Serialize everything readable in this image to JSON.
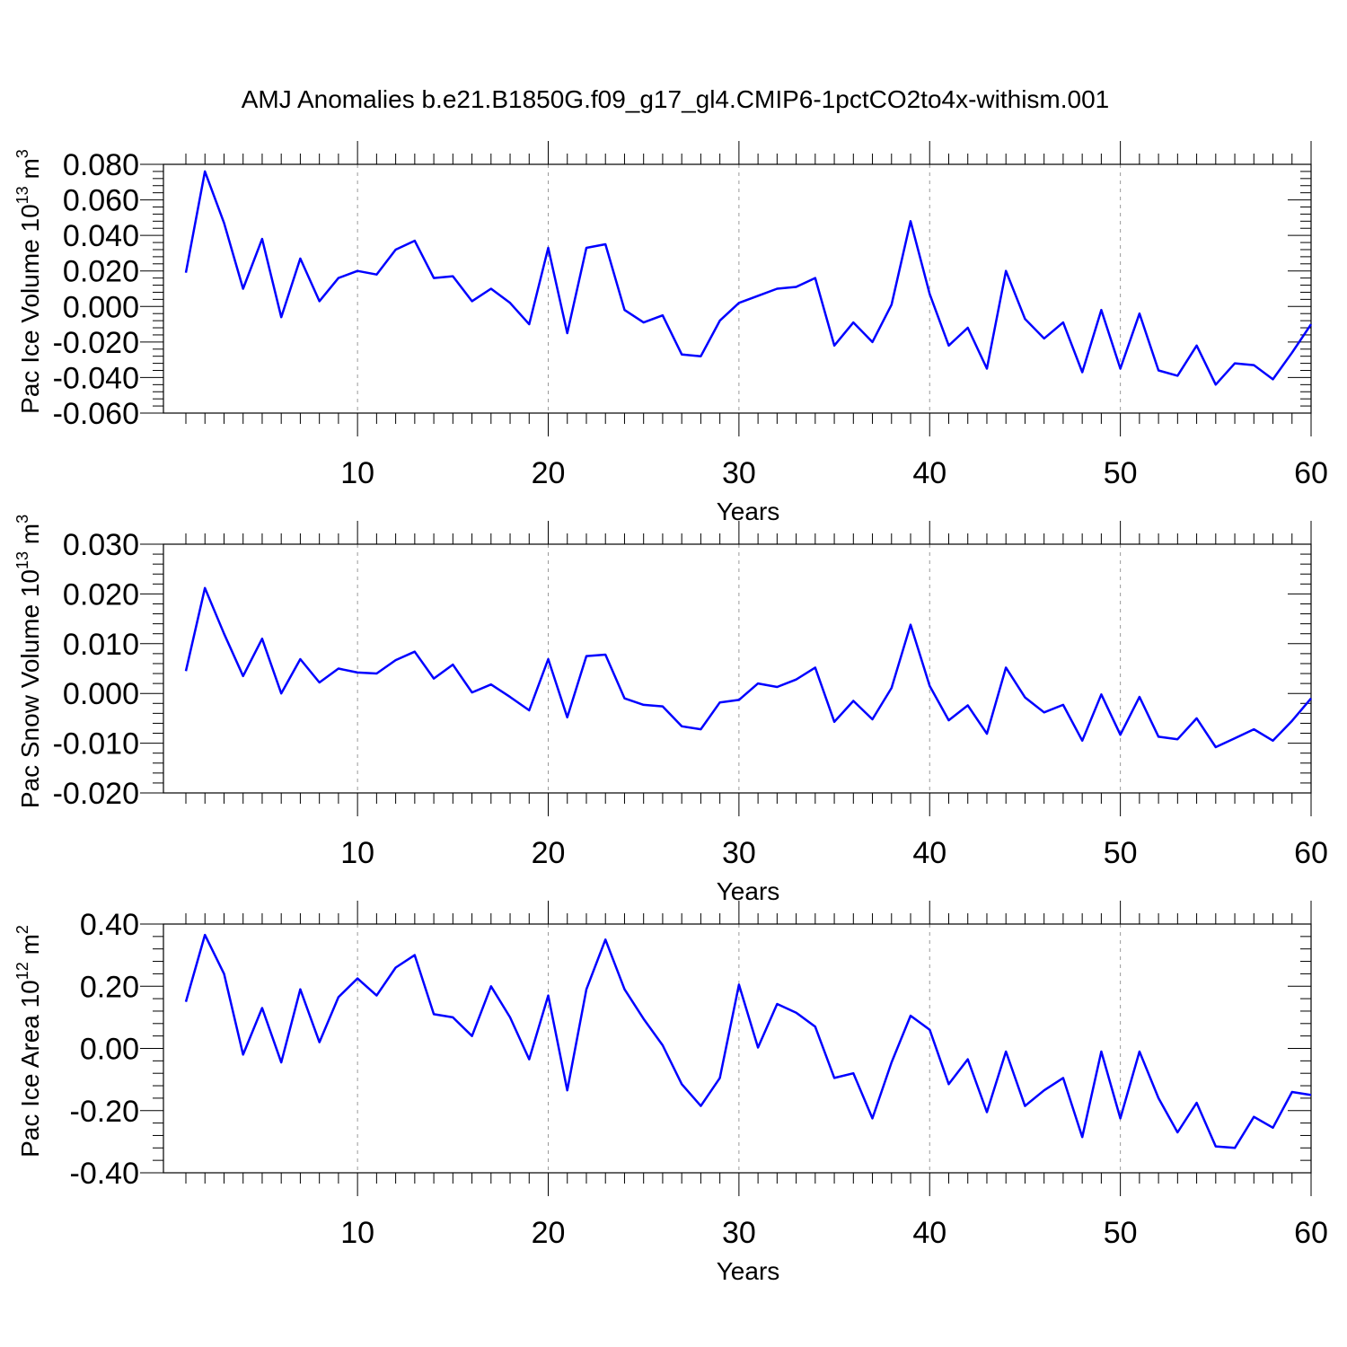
{
  "figure": {
    "title": "AMJ Anomalies b.e21.B1850G.f09_g17_gl4.CMIP6-1pctCO2to4x-withism.001"
  },
  "chart_data": [
    {
      "type": "line",
      "ylabel": "Pac Ice Volume 10",
      "ylabel_sup": "13",
      "ylabel_unit": " m",
      "ylabel_unit_sup": "3",
      "xlabel": "Years",
      "xlim": [
        1,
        60
      ],
      "ylim": [
        -0.06,
        0.08
      ],
      "yticks": [
        "0.080",
        "0.060",
        "0.040",
        "0.020",
        "0.000",
        "-0.020",
        "-0.040",
        "-0.060"
      ],
      "ytick_values": [
        0.08,
        0.06,
        0.04,
        0.02,
        0.0,
        -0.02,
        -0.04,
        -0.06
      ],
      "xticks": [
        "10",
        "20",
        "30",
        "40",
        "50",
        "60"
      ],
      "xtick_values": [
        10,
        20,
        30,
        40,
        50,
        60
      ],
      "grid": "vertical dashed at major x ticks",
      "line_color": "#0000ff",
      "x": [
        1,
        2,
        3,
        4,
        5,
        6,
        7,
        8,
        9,
        10,
        11,
        12,
        13,
        14,
        15,
        16,
        17,
        18,
        19,
        20,
        21,
        22,
        23,
        24,
        25,
        26,
        27,
        28,
        29,
        30,
        31,
        32,
        33,
        34,
        35,
        36,
        37,
        38,
        39,
        40,
        41,
        42,
        43,
        44,
        45,
        46,
        47,
        48,
        49,
        50,
        51,
        52,
        53,
        54,
        55,
        56,
        57,
        58,
        59,
        60
      ],
      "y": [
        0.019,
        0.076,
        0.047,
        0.01,
        0.038,
        -0.006,
        0.027,
        0.003,
        0.016,
        0.02,
        0.018,
        0.032,
        0.037,
        0.016,
        0.017,
        0.003,
        0.01,
        0.002,
        -0.01,
        0.033,
        -0.015,
        0.033,
        0.035,
        -0.002,
        -0.009,
        -0.005,
        -0.027,
        -0.028,
        -0.008,
        0.002,
        0.006,
        0.01,
        0.011,
        0.016,
        -0.022,
        -0.009,
        -0.02,
        0.001,
        0.048,
        0.007,
        -0.022,
        -0.012,
        -0.035,
        0.02,
        -0.007,
        -0.018,
        -0.009,
        -0.037,
        -0.002,
        -0.035,
        -0.004,
        -0.036,
        -0.039,
        -0.022,
        -0.044,
        -0.032,
        -0.033,
        -0.041,
        -0.026,
        -0.01
      ]
    },
    {
      "type": "line",
      "ylabel": "Pac Snow Volume 10",
      "ylabel_sup": "13",
      "ylabel_unit": " m",
      "ylabel_unit_sup": "3",
      "xlabel": "Years",
      "xlim": [
        1,
        60
      ],
      "ylim": [
        -0.02,
        0.03
      ],
      "yticks": [
        "0.030",
        "0.020",
        "0.010",
        "0.000",
        "-0.010",
        "-0.020"
      ],
      "ytick_values": [
        0.03,
        0.02,
        0.01,
        0.0,
        -0.01,
        -0.02
      ],
      "xticks": [
        "10",
        "20",
        "30",
        "40",
        "50",
        "60"
      ],
      "xtick_values": [
        10,
        20,
        30,
        40,
        50,
        60
      ],
      "grid": "vertical dashed at major x ticks",
      "line_color": "#0000ff",
      "x": [
        1,
        2,
        3,
        4,
        5,
        6,
        7,
        8,
        9,
        10,
        11,
        12,
        13,
        14,
        15,
        16,
        17,
        18,
        19,
        20,
        21,
        22,
        23,
        24,
        25,
        26,
        27,
        28,
        29,
        30,
        31,
        32,
        33,
        34,
        35,
        36,
        37,
        38,
        39,
        40,
        41,
        42,
        43,
        44,
        45,
        46,
        47,
        48,
        49,
        50,
        51,
        52,
        53,
        54,
        55,
        56,
        57,
        58,
        59,
        60
      ],
      "y": [
        0.0045,
        0.0212,
        0.012,
        0.0035,
        0.011,
        0.0,
        0.0069,
        0.0022,
        0.005,
        0.0042,
        0.004,
        0.0067,
        0.0084,
        0.003,
        0.0058,
        0.0002,
        0.0018,
        -0.0007,
        -0.0034,
        0.0069,
        -0.0048,
        0.0075,
        0.0078,
        -0.001,
        -0.0023,
        -0.0026,
        -0.0066,
        -0.0072,
        -0.0018,
        -0.0013,
        0.002,
        0.0013,
        0.0028,
        0.0052,
        -0.0057,
        -0.0015,
        -0.0052,
        0.0011,
        0.0138,
        0.0015,
        -0.0054,
        -0.0024,
        -0.0081,
        0.0052,
        -0.0008,
        -0.0038,
        -0.0023,
        -0.0095,
        -0.0002,
        -0.0083,
        -0.0007,
        -0.0087,
        -0.0092,
        -0.005,
        -0.0108,
        -0.009,
        -0.0072,
        -0.0095,
        -0.0055,
        -0.001
      ]
    },
    {
      "type": "line",
      "ylabel": "Pac Ice Area 10",
      "ylabel_sup": "12",
      "ylabel_unit": " m",
      "ylabel_unit_sup": "2",
      "xlabel": "Years",
      "xlim": [
        1,
        60
      ],
      "ylim": [
        -0.4,
        0.4
      ],
      "yticks": [
        "0.40",
        "0.20",
        "0.00",
        "-0.20",
        "-0.40"
      ],
      "ytick_values": [
        0.4,
        0.2,
        0.0,
        -0.2,
        -0.4
      ],
      "xticks": [
        "10",
        "20",
        "30",
        "40",
        "50",
        "60"
      ],
      "xtick_values": [
        10,
        20,
        30,
        40,
        50,
        60
      ],
      "grid": "vertical dashed at major x ticks",
      "line_color": "#0000ff",
      "x": [
        1,
        2,
        3,
        4,
        5,
        6,
        7,
        8,
        9,
        10,
        11,
        12,
        13,
        14,
        15,
        16,
        17,
        18,
        19,
        20,
        21,
        22,
        23,
        24,
        25,
        26,
        27,
        28,
        29,
        30,
        31,
        32,
        33,
        34,
        35,
        36,
        37,
        38,
        39,
        40,
        41,
        42,
        43,
        44,
        45,
        46,
        47,
        48,
        49,
        50,
        51,
        52,
        53,
        54,
        55,
        56,
        57,
        58,
        59,
        60
      ],
      "y": [
        0.15,
        0.365,
        0.24,
        -0.02,
        0.13,
        -0.045,
        0.19,
        0.02,
        0.165,
        0.225,
        0.17,
        0.26,
        0.3,
        0.11,
        0.1,
        0.04,
        0.2,
        0.1,
        -0.035,
        0.17,
        -0.135,
        0.19,
        0.35,
        0.19,
        0.095,
        0.01,
        -0.115,
        -0.185,
        -0.095,
        0.205,
        0.003,
        0.143,
        0.115,
        0.07,
        -0.095,
        -0.08,
        -0.225,
        -0.045,
        0.105,
        0.06,
        -0.115,
        -0.035,
        -0.205,
        -0.01,
        -0.185,
        -0.135,
        -0.095,
        -0.285,
        -0.01,
        -0.225,
        -0.01,
        -0.16,
        -0.27,
        -0.175,
        -0.315,
        -0.32,
        -0.22,
        -0.255,
        -0.14,
        -0.15
      ]
    }
  ]
}
